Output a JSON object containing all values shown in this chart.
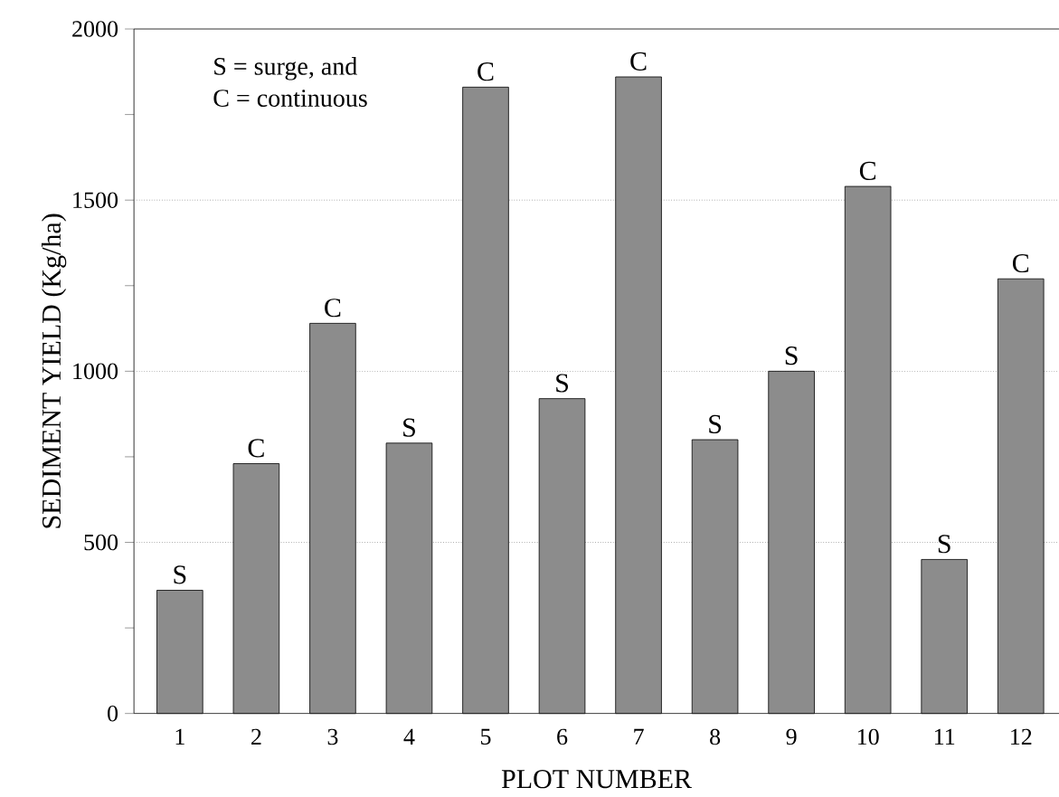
{
  "chart_data": {
    "type": "bar",
    "xlabel": "PLOT NUMBER",
    "ylabel": "SEDIMENT YIELD (Kg/ha)",
    "categories": [
      "1",
      "2",
      "3",
      "4",
      "5",
      "6",
      "7",
      "8",
      "9",
      "10",
      "11",
      "12"
    ],
    "values": [
      360,
      730,
      1140,
      790,
      1830,
      920,
      1860,
      800,
      1000,
      1540,
      450,
      1270
    ],
    "value_labels": [
      "S",
      "C",
      "C",
      "S",
      "C",
      "S",
      "C",
      "S",
      "S",
      "C",
      "S",
      "C"
    ],
    "color": "#8c8c8c",
    "annotations": [
      "S = surge, and",
      "C = continuous"
    ],
    "ylim": [
      0,
      2000
    ],
    "yticks": [
      0,
      {
        "value": 250,
        "label": null
      },
      500,
      {
        "value": 750,
        "label": null
      },
      1000,
      {
        "value": 1250,
        "label": null
      },
      1500,
      {
        "value": 1750,
        "label": null
      },
      2000
    ],
    "grid": "y"
  }
}
